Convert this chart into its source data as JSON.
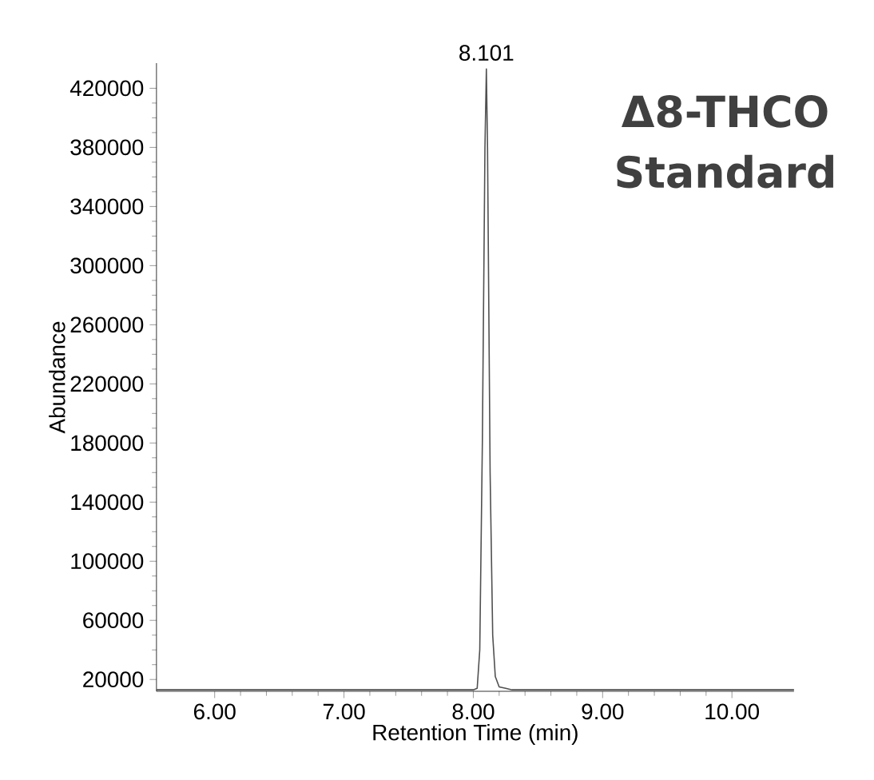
{
  "chart_data": {
    "type": "line",
    "title": "Δ8-THCO Standard",
    "xlabel": "Retention Time (min)",
    "ylabel": "Abundance",
    "xlim": [
      5.55,
      10.48
    ],
    "ylim": [
      12000,
      437000
    ],
    "xticks": [
      {
        "value": 6,
        "label": "6.00"
      },
      {
        "value": 7,
        "label": "7.00"
      },
      {
        "value": 8,
        "label": "8.00"
      },
      {
        "value": 9,
        "label": "9.00"
      },
      {
        "value": 10,
        "label": "10.00"
      }
    ],
    "yticks": [
      20000,
      60000,
      100000,
      140000,
      180000,
      220000,
      260000,
      300000,
      340000,
      380000,
      420000
    ],
    "annotations": [
      {
        "text": "8.101",
        "x": 8.101,
        "y": 433000
      }
    ],
    "series": [
      {
        "color": "#505050",
        "x": [
          5.55,
          7.0,
          8.0,
          8.03,
          8.05,
          8.07,
          8.09,
          8.101,
          8.11,
          8.13,
          8.15,
          8.17,
          8.2,
          8.25,
          8.3,
          9.0,
          10.48
        ],
        "values": [
          13000,
          13000,
          13000,
          14000,
          40000,
          180000,
          380000,
          433000,
          380000,
          160000,
          50000,
          22000,
          15000,
          14000,
          13000,
          13000,
          13000
        ]
      }
    ]
  }
}
